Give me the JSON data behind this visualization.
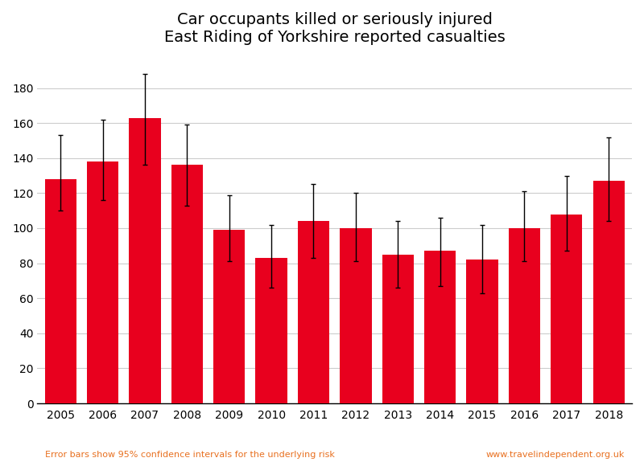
{
  "title_line1": "Car occupants killed or seriously injured",
  "title_line2": "East Riding of Yorkshire reported casualties",
  "years": [
    2005,
    2006,
    2007,
    2008,
    2009,
    2010,
    2011,
    2012,
    2013,
    2014,
    2015,
    2016,
    2017,
    2018
  ],
  "values": [
    128,
    138,
    163,
    136,
    99,
    83,
    104,
    100,
    85,
    87,
    82,
    100,
    108,
    127
  ],
  "err_low": [
    18,
    22,
    27,
    23,
    18,
    17,
    21,
    19,
    19,
    20,
    19,
    19,
    21,
    23
  ],
  "err_high": [
    25,
    24,
    25,
    23,
    20,
    19,
    21,
    20,
    19,
    19,
    20,
    21,
    22,
    25
  ],
  "bar_color": "#e8001e",
  "error_bar_color": "#000000",
  "background_color": "#ffffff",
  "ylim": [
    0,
    200
  ],
  "yticks": [
    0,
    20,
    40,
    60,
    80,
    100,
    120,
    140,
    160,
    180
  ],
  "grid_color": "#cccccc",
  "footnote_left": "Error bars show 95% confidence intervals for the underlying risk",
  "footnote_right": "www.travelindependent.org.uk",
  "footnote_color": "#e87020",
  "title_fontsize": 14,
  "tick_fontsize": 10,
  "footnote_fontsize": 8
}
